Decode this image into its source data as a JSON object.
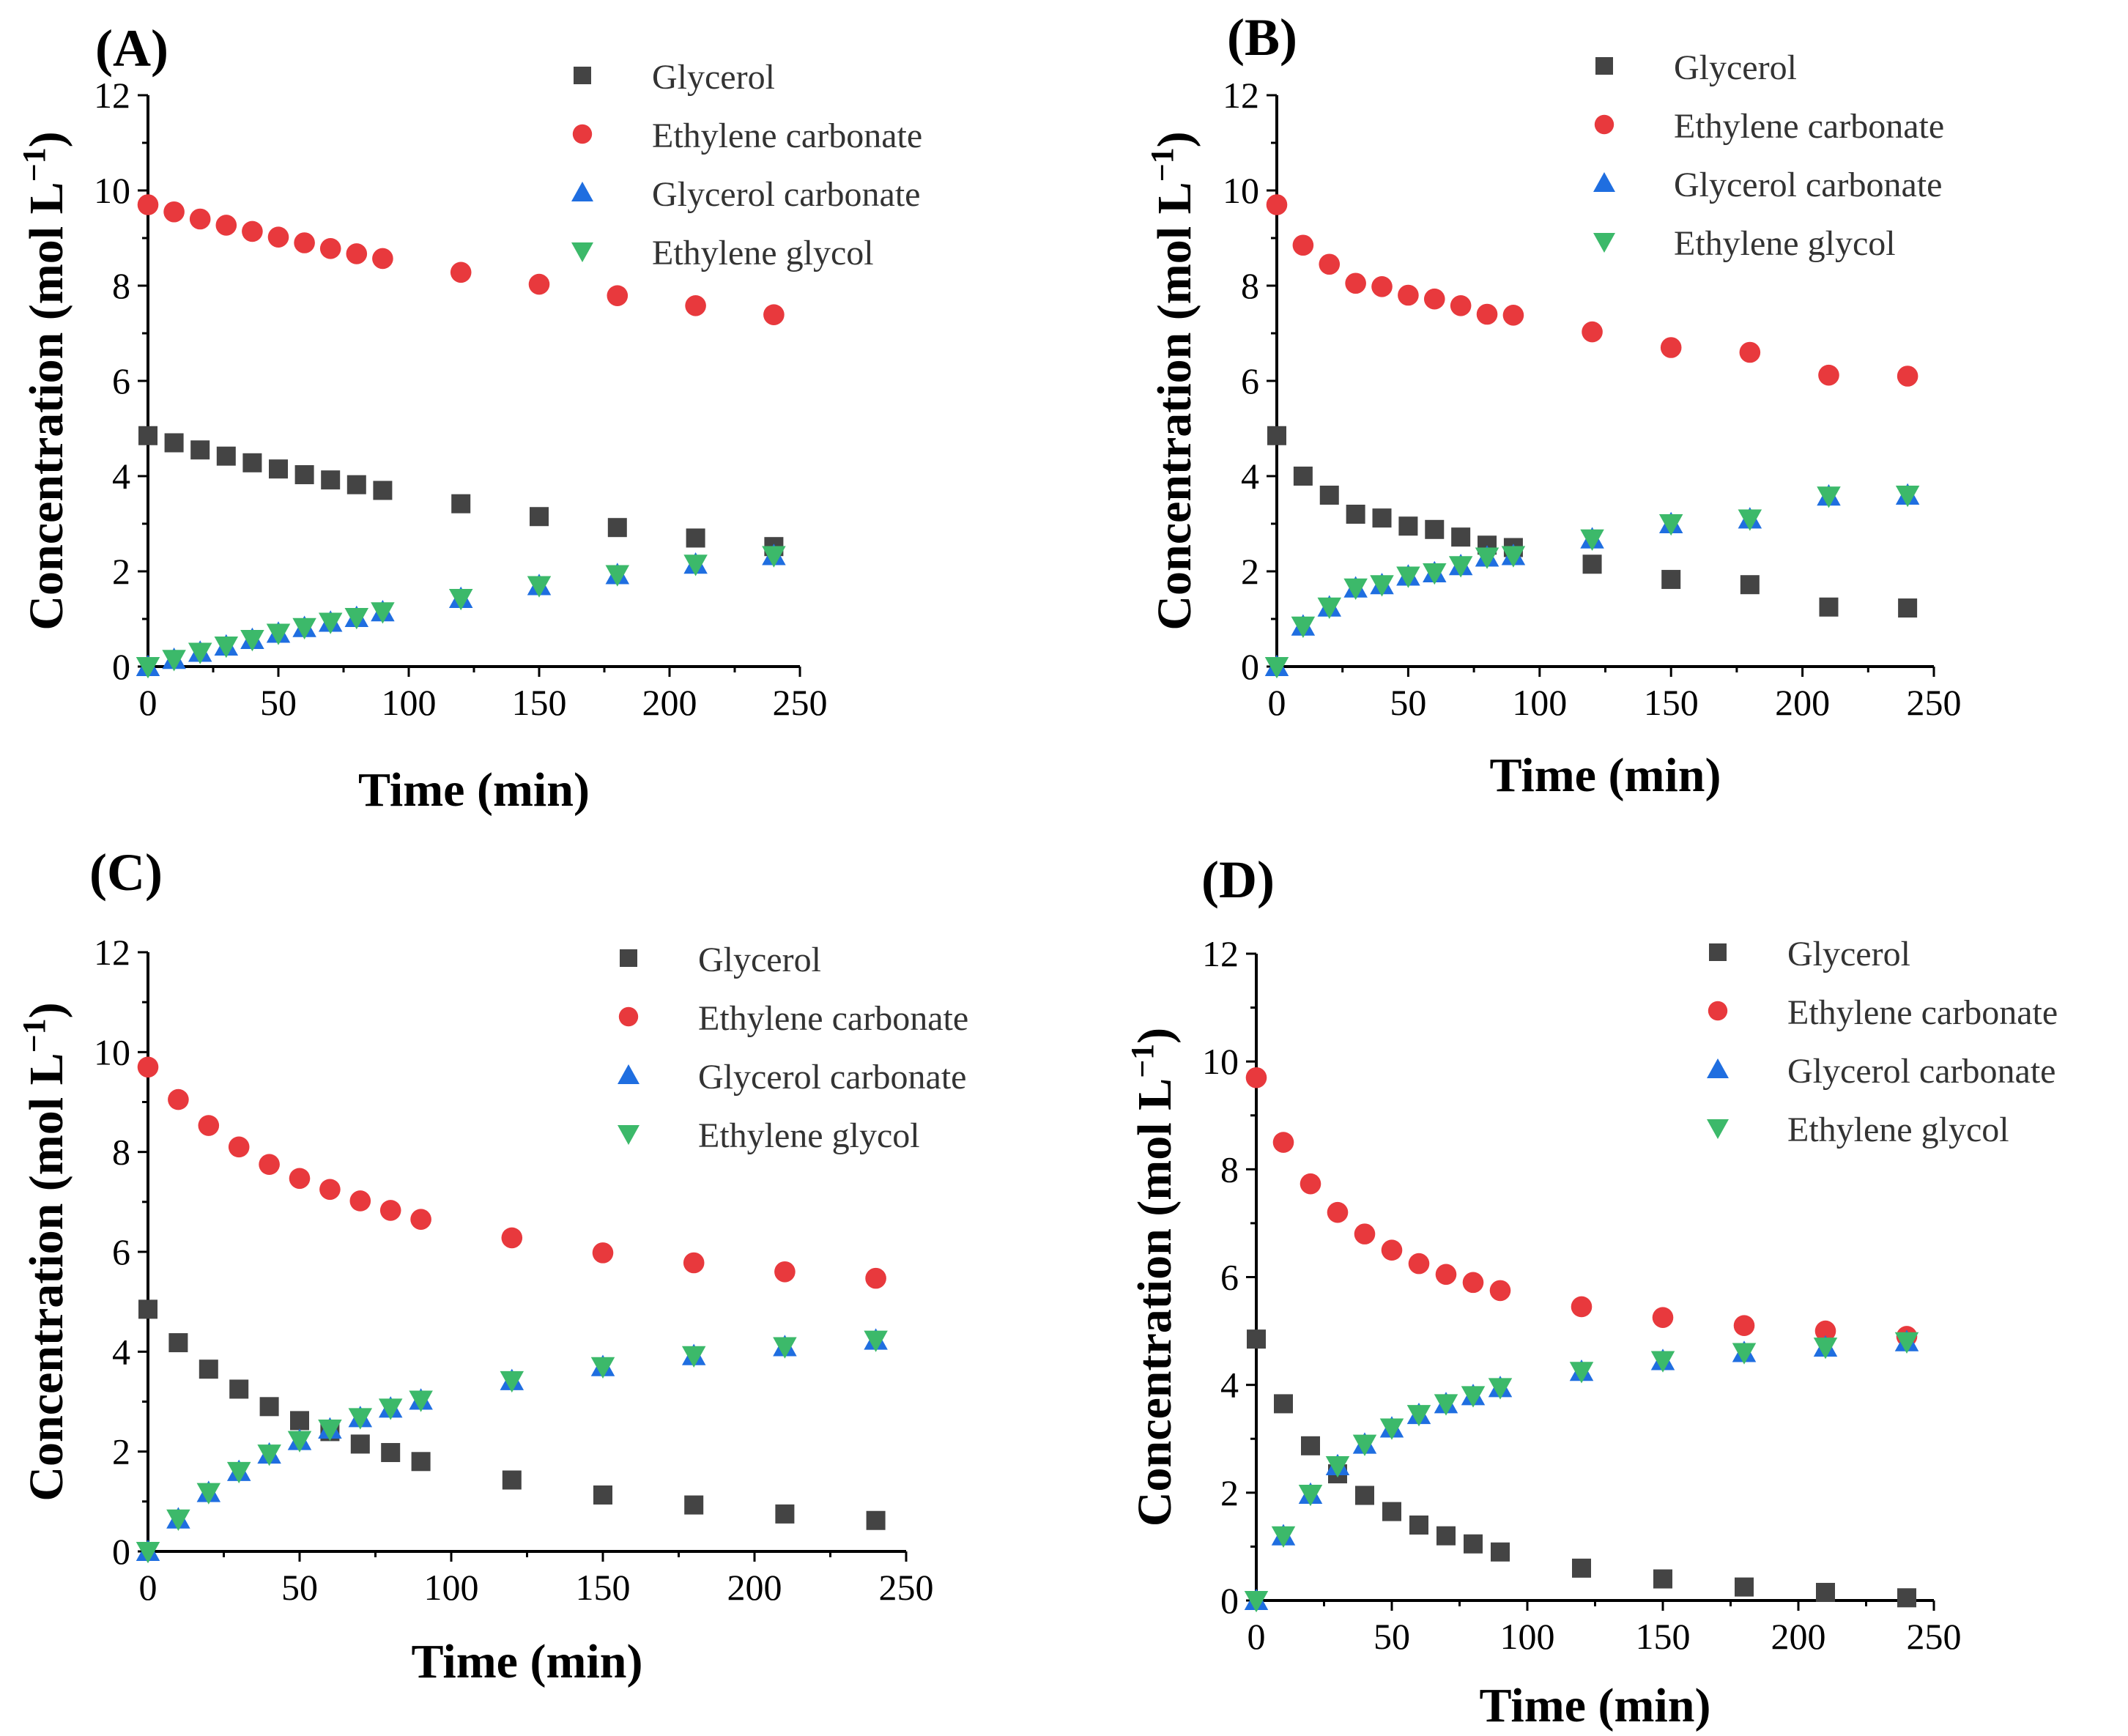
{
  "figure": {
    "marker_colors": {
      "glycerol": "#444444",
      "ethylene_carbonate": "#e8393d",
      "glycerol_carbonate": "#1f6ee0",
      "ethylene_glycol": "#3cb96a"
    }
  },
  "chart_data": [
    {
      "panel": "(A)",
      "type": "scatter",
      "xlabel": "Time (min)",
      "ylabel": "Concentration (mol L",
      "ylabel_sup": "−1",
      "ylabel_end": ")",
      "xlim": [
        0,
        250
      ],
      "ylim": [
        0,
        12
      ],
      "xticks": [
        "0",
        "50",
        "100",
        "150",
        "200",
        "250"
      ],
      "yticks": [
        "0",
        "2",
        "4",
        "6",
        "8",
        "10",
        "12"
      ],
      "legend_position": "top-right",
      "x": [
        0,
        10,
        20,
        30,
        40,
        50,
        60,
        70,
        80,
        90,
        120,
        150,
        180,
        210,
        240
      ],
      "series": [
        {
          "name": "Glycerol",
          "marker": "square",
          "values": [
            4.85,
            4.7,
            4.55,
            4.42,
            4.28,
            4.15,
            4.03,
            3.92,
            3.82,
            3.7,
            3.42,
            3.15,
            2.92,
            2.7,
            2.52
          ]
        },
        {
          "name": "Ethylene carbonate",
          "marker": "circle",
          "values": [
            9.7,
            9.55,
            9.4,
            9.27,
            9.14,
            9.02,
            8.9,
            8.78,
            8.67,
            8.57,
            8.28,
            8.03,
            7.79,
            7.58,
            7.39
          ]
        },
        {
          "name": "Glycerol carbonate",
          "marker": "triangle-up",
          "values": [
            0.0,
            0.15,
            0.3,
            0.43,
            0.57,
            0.7,
            0.82,
            0.93,
            1.03,
            1.15,
            1.43,
            1.7,
            1.93,
            2.15,
            2.33
          ]
        },
        {
          "name": "Ethylene glycol",
          "marker": "triangle-down",
          "values": [
            0.0,
            0.15,
            0.3,
            0.43,
            0.57,
            0.7,
            0.82,
            0.93,
            1.03,
            1.15,
            1.43,
            1.7,
            1.93,
            2.15,
            2.33
          ]
        }
      ]
    },
    {
      "panel": "(B)",
      "type": "scatter",
      "xlabel": "Time (min)",
      "ylabel": "Concentration (mol L",
      "ylabel_sup": "−1",
      "ylabel_end": ")",
      "xlim": [
        0,
        250
      ],
      "ylim": [
        0,
        12
      ],
      "xticks": [
        "0",
        "50",
        "100",
        "150",
        "200",
        "250"
      ],
      "yticks": [
        "0",
        "2",
        "4",
        "6",
        "8",
        "10",
        "12"
      ],
      "legend_position": "top-right",
      "x": [
        0,
        10,
        20,
        30,
        40,
        50,
        60,
        70,
        80,
        90,
        120,
        150,
        180,
        210,
        240
      ],
      "series": [
        {
          "name": "Glycerol",
          "marker": "square",
          "values": [
            4.85,
            4.0,
            3.6,
            3.2,
            3.12,
            2.95,
            2.88,
            2.72,
            2.55,
            2.5,
            2.15,
            1.83,
            1.72,
            1.25,
            1.23
          ]
        },
        {
          "name": "Ethylene carbonate",
          "marker": "circle",
          "values": [
            9.7,
            8.85,
            8.45,
            8.05,
            7.98,
            7.8,
            7.72,
            7.58,
            7.4,
            7.38,
            7.03,
            6.7,
            6.6,
            6.12,
            6.1
          ]
        },
        {
          "name": "Glycerol carbonate",
          "marker": "triangle-up",
          "values": [
            0.0,
            0.85,
            1.25,
            1.65,
            1.72,
            1.9,
            1.97,
            2.12,
            2.3,
            2.33,
            2.68,
            3.0,
            3.1,
            3.58,
            3.6
          ]
        },
        {
          "name": "Ethylene glycol",
          "marker": "triangle-down",
          "values": [
            0.0,
            0.85,
            1.25,
            1.65,
            1.72,
            1.9,
            1.97,
            2.12,
            2.3,
            2.33,
            2.68,
            3.0,
            3.1,
            3.58,
            3.6
          ]
        }
      ]
    },
    {
      "panel": "(C)",
      "type": "scatter",
      "xlabel": "Time (min)",
      "ylabel": "Concentration (mol L",
      "ylabel_sup": "−1",
      "ylabel_end": ")",
      "xlim": [
        0,
        250
      ],
      "ylim": [
        0,
        12
      ],
      "xticks": [
        "0",
        "50",
        "100",
        "150",
        "200",
        "250"
      ],
      "yticks": [
        "0",
        "2",
        "4",
        "6",
        "8",
        "10",
        "12"
      ],
      "legend_position": "top-right",
      "x": [
        0,
        10,
        20,
        30,
        40,
        50,
        60,
        70,
        80,
        90,
        120,
        150,
        180,
        210,
        240
      ],
      "series": [
        {
          "name": "Glycerol",
          "marker": "square",
          "values": [
            4.85,
            4.18,
            3.65,
            3.25,
            2.9,
            2.62,
            2.4,
            2.15,
            1.98,
            1.8,
            1.43,
            1.13,
            0.93,
            0.75,
            0.62
          ]
        },
        {
          "name": "Ethylene carbonate",
          "marker": "circle",
          "values": [
            9.7,
            9.05,
            8.53,
            8.1,
            7.75,
            7.47,
            7.25,
            7.02,
            6.83,
            6.65,
            6.28,
            5.98,
            5.78,
            5.6,
            5.47
          ]
        },
        {
          "name": "Glycerol carbonate",
          "marker": "triangle-up",
          "values": [
            0.0,
            0.65,
            1.18,
            1.6,
            1.95,
            2.22,
            2.45,
            2.68,
            2.87,
            3.03,
            3.42,
            3.7,
            3.92,
            4.1,
            4.23
          ]
        },
        {
          "name": "Ethylene glycol",
          "marker": "triangle-down",
          "values": [
            0.0,
            0.65,
            1.18,
            1.6,
            1.95,
            2.22,
            2.45,
            2.68,
            2.87,
            3.03,
            3.42,
            3.7,
            3.92,
            4.1,
            4.23
          ]
        }
      ]
    },
    {
      "panel": "(D)",
      "type": "scatter",
      "xlabel": "Time (min)",
      "ylabel": "Concentration (mol L",
      "ylabel_sup": "−1",
      "ylabel_end": ")",
      "xlim": [
        0,
        250
      ],
      "ylim": [
        0,
        12
      ],
      "xticks": [
        "0",
        "50",
        "100",
        "150",
        "200",
        "250"
      ],
      "yticks": [
        "0",
        "2",
        "4",
        "6",
        "8",
        "10",
        "12"
      ],
      "legend_position": "top-right",
      "x": [
        0,
        10,
        20,
        30,
        40,
        50,
        60,
        70,
        80,
        90,
        120,
        150,
        180,
        210,
        240
      ],
      "series": [
        {
          "name": "Glycerol",
          "marker": "square",
          "values": [
            4.85,
            3.65,
            2.87,
            2.35,
            1.95,
            1.65,
            1.4,
            1.2,
            1.05,
            0.9,
            0.6,
            0.4,
            0.25,
            0.15,
            0.05
          ]
        },
        {
          "name": "Ethylene carbonate",
          "marker": "circle",
          "values": [
            9.7,
            8.5,
            7.73,
            7.2,
            6.8,
            6.5,
            6.25,
            6.05,
            5.9,
            5.75,
            5.45,
            5.25,
            5.1,
            5.0,
            4.9
          ]
        },
        {
          "name": "Glycerol carbonate",
          "marker": "triangle-up",
          "values": [
            0.0,
            1.2,
            1.97,
            2.5,
            2.9,
            3.2,
            3.45,
            3.65,
            3.8,
            3.95,
            4.25,
            4.45,
            4.6,
            4.7,
            4.8
          ]
        },
        {
          "name": "Ethylene glycol",
          "marker": "triangle-down",
          "values": [
            0.0,
            1.2,
            1.97,
            2.5,
            2.9,
            3.2,
            3.45,
            3.65,
            3.8,
            3.95,
            4.25,
            4.45,
            4.6,
            4.7,
            4.8
          ]
        }
      ]
    }
  ]
}
